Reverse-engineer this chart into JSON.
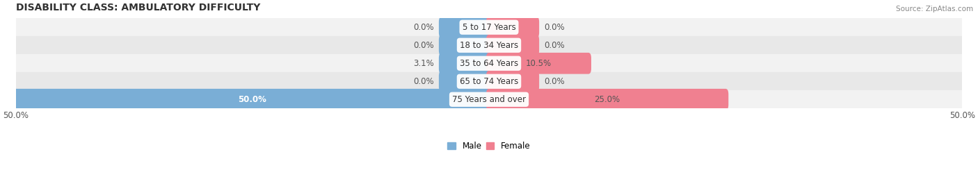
{
  "title": "DISABILITY CLASS: AMBULATORY DIFFICULTY",
  "source": "Source: ZipAtlas.com",
  "categories": [
    "5 to 17 Years",
    "18 to 34 Years",
    "35 to 64 Years",
    "65 to 74 Years",
    "75 Years and over"
  ],
  "male_values": [
    0.0,
    0.0,
    3.1,
    0.0,
    50.0
  ],
  "female_values": [
    0.0,
    0.0,
    10.5,
    0.0,
    25.0
  ],
  "x_max": 50.0,
  "male_color": "#7aaed6",
  "female_color": "#f08090",
  "title_fontsize": 10,
  "label_fontsize": 8.5,
  "tick_fontsize": 8.5,
  "bar_height": 0.58,
  "min_bar_width": 5.0,
  "figsize": [
    14.06,
    2.68
  ],
  "dpi": 100,
  "row_colors": [
    "#f2f2f2",
    "#e8e8e8"
  ]
}
